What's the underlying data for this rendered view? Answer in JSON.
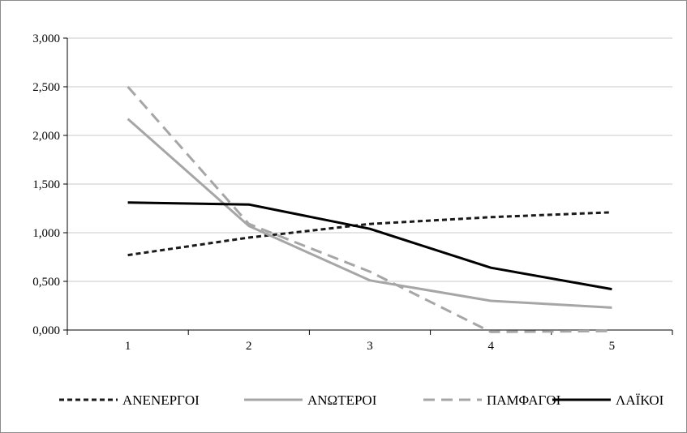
{
  "chart_data": {
    "type": "line",
    "x": [
      "1",
      "2",
      "3",
      "4",
      "5"
    ],
    "y_ticks": [
      "0,000",
      "0,500",
      "1,000",
      "1,500",
      "2,000",
      "2,500",
      "3,000"
    ],
    "ylim": [
      0,
      3
    ],
    "grid": "horizontal",
    "legend": "bottom",
    "series": [
      {
        "name": "ΑΝΕΝΕΡΓΟΙ",
        "values": [
          0.77,
          0.95,
          1.09,
          1.16,
          1.21
        ],
        "color": "#1a1a1a",
        "style": "dotted"
      },
      {
        "name": "ΑΝΩΤΕΡΟΙ",
        "values": [
          2.17,
          1.07,
          0.51,
          0.3,
          0.23
        ],
        "color": "#a6a6a6",
        "style": "solid"
      },
      {
        "name": "ΠΑΜΦΑΓΟΙ",
        "values": [
          2.5,
          1.09,
          0.6,
          -0.02,
          -0.01
        ],
        "color": "#a6a6a6",
        "style": "dashed"
      },
      {
        "name": "ΛΑΪΚΟΙ",
        "values": [
          1.31,
          1.29,
          1.04,
          0.64,
          0.42
        ],
        "color": "#000000",
        "style": "solid"
      }
    ]
  }
}
